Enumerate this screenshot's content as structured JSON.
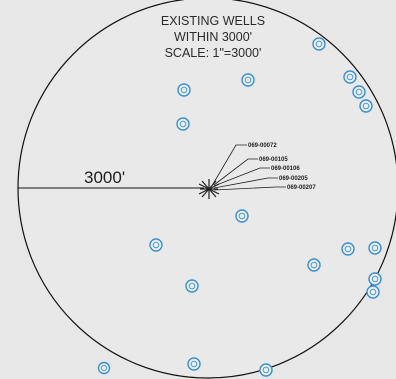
{
  "map": {
    "title_lines": [
      "EXISTING WELLS",
      "WITHIN 3000'",
      "SCALE: 1\"=3000'"
    ],
    "radius_label": "3000'",
    "callouts": [
      "069-00072",
      "069-00105",
      "069-00106",
      "069-00205",
      "069-00207"
    ],
    "well_symbol": "well-circle-icon",
    "colors": {
      "background": "#e7e7e7",
      "boundary": "#111111",
      "well": "#3b8fd0"
    },
    "wells_count": 18
  }
}
